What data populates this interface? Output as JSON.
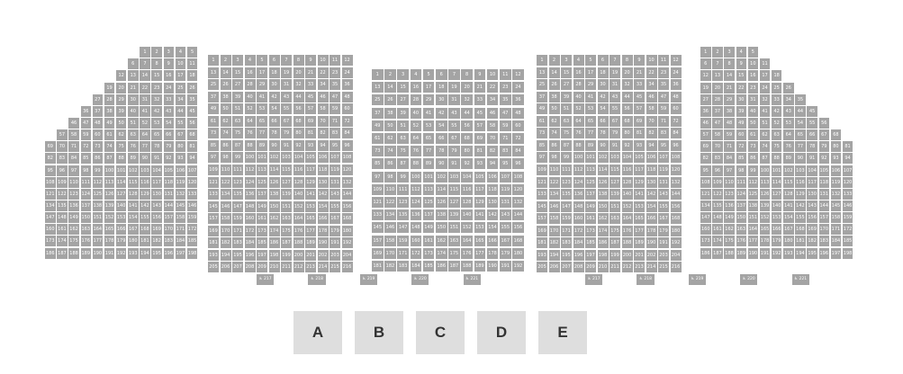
{
  "map": {
    "seat_color": "#a4a4a4",
    "seat_text_color": "#ffffff",
    "accessible_icon": "wheelchair-icon",
    "accessible_symbol": "♿",
    "blocks": [
      {
        "id": "outer-left",
        "rows": [
          {
            "start": 1,
            "count": 5
          },
          {
            "start": 6,
            "count": 6
          },
          {
            "start": 12,
            "count": 7
          },
          {
            "start": 19,
            "count": 8
          },
          {
            "start": 27,
            "count": 9
          },
          {
            "start": 36,
            "count": 10
          },
          {
            "start": 46,
            "count": 11
          },
          {
            "start": 57,
            "count": 12
          },
          {
            "start": 69,
            "count": 13
          },
          {
            "start": 82,
            "count": 13
          },
          {
            "start": 95,
            "count": 13
          },
          {
            "start": 108,
            "count": 13
          },
          {
            "start": 121,
            "count": 13
          },
          {
            "start": 134,
            "count": 13
          },
          {
            "start": 147,
            "count": 13
          },
          {
            "start": 160,
            "count": 13
          },
          {
            "start": 173,
            "count": 13
          },
          {
            "start": 186,
            "count": 13
          }
        ]
      },
      {
        "id": "inner-left",
        "rows": [
          {
            "start": 1,
            "count": 12
          },
          {
            "start": 13,
            "count": 12
          },
          {
            "start": 25,
            "count": 12
          },
          {
            "start": 37,
            "count": 12
          },
          {
            "start": 49,
            "count": 12
          },
          {
            "start": 61,
            "count": 12
          },
          {
            "start": 73,
            "count": 12
          },
          {
            "start": 85,
            "count": 12
          },
          {
            "start": 97,
            "count": 12
          },
          {
            "start": 109,
            "count": 12
          },
          {
            "start": 121,
            "count": 12
          },
          {
            "start": 133,
            "count": 12
          },
          {
            "start": 145,
            "count": 12
          },
          {
            "start": 157,
            "count": 12
          },
          {
            "start": 169,
            "count": 12
          },
          {
            "start": 181,
            "count": 12
          },
          {
            "start": 193,
            "count": 12
          },
          {
            "start": 205,
            "count": 12
          }
        ],
        "accessible": [
          "217",
          "218",
          "219",
          "220",
          "221"
        ]
      },
      {
        "id": "center",
        "rows": [
          {
            "start": 1,
            "count": 12
          },
          {
            "start": 13,
            "count": 12
          },
          {
            "start": 25,
            "count": 12
          },
          {
            "start": 37,
            "count": 12
          },
          {
            "start": 49,
            "count": 12
          },
          {
            "start": 61,
            "count": 12
          },
          {
            "start": 73,
            "count": 12
          },
          {
            "start": 85,
            "count": 12
          },
          {
            "start": 97,
            "count": 12
          },
          {
            "start": 109,
            "count": 12
          },
          {
            "start": 121,
            "count": 12
          },
          {
            "start": 133,
            "count": 12
          },
          {
            "start": 145,
            "count": 12
          },
          {
            "start": 157,
            "count": 12
          },
          {
            "start": 169,
            "count": 12
          },
          {
            "start": 181,
            "count": 12
          }
        ]
      },
      {
        "id": "inner-right",
        "rows": [
          {
            "start": 1,
            "count": 12
          },
          {
            "start": 13,
            "count": 12
          },
          {
            "start": 25,
            "count": 12
          },
          {
            "start": 37,
            "count": 12
          },
          {
            "start": 49,
            "count": 12
          },
          {
            "start": 61,
            "count": 12
          },
          {
            "start": 73,
            "count": 12
          },
          {
            "start": 85,
            "count": 12
          },
          {
            "start": 97,
            "count": 12
          },
          {
            "start": 109,
            "count": 12
          },
          {
            "start": 121,
            "count": 12
          },
          {
            "start": 133,
            "count": 12
          },
          {
            "start": 145,
            "count": 12
          },
          {
            "start": 157,
            "count": 12
          },
          {
            "start": 169,
            "count": 12
          },
          {
            "start": 181,
            "count": 12
          },
          {
            "start": 193,
            "count": 12
          },
          {
            "start": 205,
            "count": 12
          }
        ],
        "accessible": [
          "217",
          "218",
          "219",
          "220",
          "221"
        ]
      },
      {
        "id": "outer-right",
        "rows": [
          {
            "start": 1,
            "count": 5
          },
          {
            "start": 6,
            "count": 6
          },
          {
            "start": 12,
            "count": 7
          },
          {
            "start": 19,
            "count": 8
          },
          {
            "start": 27,
            "count": 9
          },
          {
            "start": 36,
            "count": 10
          },
          {
            "start": 46,
            "count": 11
          },
          {
            "start": 57,
            "count": 12
          },
          {
            "start": 69,
            "count": 13
          },
          {
            "start": 82,
            "count": 13
          },
          {
            "start": 95,
            "count": 13
          },
          {
            "start": 108,
            "count": 13
          },
          {
            "start": 121,
            "count": 13
          },
          {
            "start": 134,
            "count": 13
          },
          {
            "start": 147,
            "count": 13
          },
          {
            "start": 160,
            "count": 13
          },
          {
            "start": 173,
            "count": 13
          },
          {
            "start": 186,
            "count": 13
          }
        ]
      }
    ]
  },
  "sections": [
    {
      "label": "A"
    },
    {
      "label": "B"
    },
    {
      "label": "C"
    },
    {
      "label": "D"
    },
    {
      "label": "E"
    }
  ]
}
